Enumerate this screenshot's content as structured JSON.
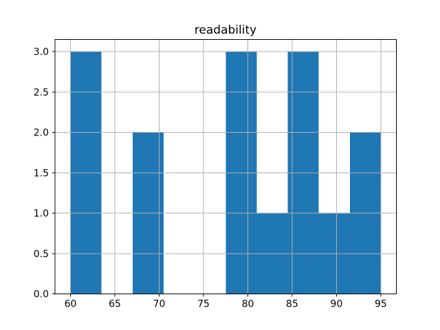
{
  "figure": {
    "background": "#ffffff"
  },
  "chart_data": {
    "type": "bar",
    "subtype": "histogram",
    "title": "readability",
    "xlabel": "",
    "ylabel": "",
    "bin_edges": [
      60,
      63.5,
      67,
      70.5,
      74,
      77.5,
      81,
      84.5,
      88,
      91.5,
      95
    ],
    "counts": [
      3,
      0,
      2,
      0,
      0,
      3,
      1,
      3,
      1,
      2
    ],
    "xticks": [
      60,
      65,
      70,
      75,
      80,
      85,
      90,
      95
    ],
    "xtick_labels": [
      "60",
      "65",
      "70",
      "75",
      "80",
      "85",
      "90",
      "95"
    ],
    "yticks": [
      0,
      0.5,
      1,
      1.5,
      2,
      2.5,
      3
    ],
    "ytick_labels": [
      "0.0",
      "0.5",
      "1.0",
      "1.5",
      "2.0",
      "2.5",
      "3.0"
    ],
    "xlim": [
      58.25,
      96.75
    ],
    "ylim": [
      0,
      3.15
    ],
    "grid": true,
    "grid_on_top_of_bars": true,
    "legend": null,
    "bar_color": "#1f77b4",
    "grid_color": "#b0b0b0",
    "axis_color": "#000000",
    "text_color": "#000000"
  }
}
